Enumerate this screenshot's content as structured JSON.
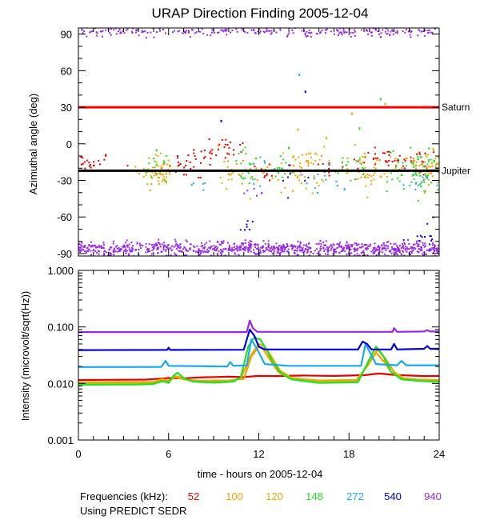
{
  "colors": {
    "f52": "#e00000",
    "f100": "#ff9a00",
    "f120": "#d8b000",
    "f148": "#22e022",
    "f272": "#18a8f0",
    "f540": "#0000e0",
    "f940": "#9a28e8",
    "saturn": "#ff0000",
    "jupiter": "#000000"
  },
  "chart_data": [
    {
      "type": "scatter",
      "title": "URAP Direction Finding  2005-12-04",
      "xlabel": "",
      "ylabel": "Azimuthal angle (deg)",
      "xlim": [
        0,
        24
      ],
      "ylim": [
        -92,
        95
      ],
      "yticks": [
        90,
        60,
        30,
        0,
        -30,
        -60,
        -90
      ],
      "ytick_labels": [
        "90",
        "60",
        "30",
        "0",
        "-30",
        "-60",
        "-90"
      ],
      "reference_lines": [
        {
          "name": "Saturn",
          "label": "Saturn",
          "y": 30,
          "color_key": "saturn"
        },
        {
          "name": "Jupiter",
          "label": "Jupiter",
          "y": -22,
          "color_key": "jupiter"
        }
      ],
      "series": [
        {
          "name": "52 kHz",
          "clusters": [
            [
              0.5,
              -15,
              4,
              1.0,
              25
            ],
            [
              7.8,
              -18,
              6,
              0.9,
              30
            ],
            [
              9.5,
              -3,
              5,
              1.0,
              25
            ],
            [
              12.5,
              -23,
              4,
              0.3,
              10
            ],
            [
              16.5,
              -20,
              5,
              0.6,
              12
            ],
            [
              19.8,
              -12,
              6,
              1.0,
              25
            ],
            [
              22.2,
              -15,
              6,
              1.0,
              30
            ]
          ]
        },
        {
          "name": "100 kHz",
          "clusters": [
            [
              5.5,
              -24,
              5,
              0.4,
              20
            ],
            [
              12.2,
              -20,
              6,
              0.5,
              15
            ],
            [
              15.2,
              -20,
              8,
              0.6,
              25
            ],
            [
              19.5,
              -25,
              5,
              0.6,
              20
            ],
            [
              22.5,
              -18,
              6,
              0.8,
              40
            ]
          ]
        },
        {
          "name": "120 kHz",
          "clusters": [
            [
              5.3,
              -22,
              7,
              0.7,
              45
            ],
            [
              10.3,
              -25,
              6,
              0.4,
              20
            ],
            [
              14.8,
              -22,
              10,
              0.8,
              35
            ],
            [
              18.5,
              -21,
              8,
              0.8,
              25
            ],
            [
              23.5,
              -20,
              8,
              0.5,
              40
            ]
          ]
        },
        {
          "name": "148 kHz",
          "clusters": [
            [
              5.2,
              -20,
              5,
              0.3,
              12
            ],
            [
              11.3,
              -20,
              8,
              0.5,
              20
            ],
            [
              13.5,
              -22,
              6,
              0.4,
              15
            ],
            [
              18.3,
              -20,
              6,
              0.7,
              15
            ],
            [
              22.6,
              -22,
              9,
              1.0,
              70
            ]
          ]
        },
        {
          "name": "272 kHz",
          "clusters": [
            [
              8.0,
              -33,
              4,
              0.3,
              5
            ],
            [
              12.0,
              -23,
              6,
              0.5,
              10
            ],
            [
              16.0,
              -28,
              8,
              0.8,
              12
            ],
            [
              23.0,
              -28,
              6,
              0.6,
              15
            ]
          ]
        },
        {
          "name": "540 kHz",
          "clusters": [
            [
              11.4,
              -70,
              6,
              0.3,
              8
            ],
            [
              14.2,
              -25,
              5,
              0.5,
              8
            ],
            [
              22.9,
              -72,
              8,
              0.5,
              8
            ],
            [
              23.4,
              -82,
              4,
              0.3,
              10
            ]
          ]
        },
        {
          "name": "940 kHz",
          "clusters": [
            [
              12,
              -86,
              3,
              12,
              900
            ],
            [
              12,
              92,
              2,
              12,
              250
            ],
            [
              11.5,
              -39,
              4,
              0.3,
              4
            ]
          ]
        }
      ],
      "isolated_points": [
        {
          "series": "272 kHz",
          "x": 14.7,
          "y": 57
        },
        {
          "series": "540 kHz",
          "x": 15.1,
          "y": 43
        },
        {
          "series": "148 kHz",
          "x": 20.1,
          "y": 37
        },
        {
          "series": "120 kHz",
          "x": 20.4,
          "y": 33
        },
        {
          "series": "100 kHz",
          "x": 18.2,
          "y": 25
        },
        {
          "series": "148 kHz",
          "x": 18.7,
          "y": 13
        },
        {
          "series": "540 kHz",
          "x": 9.5,
          "y": 19
        },
        {
          "series": "120 kHz",
          "x": 14.6,
          "y": 12
        },
        {
          "series": "120 kHz",
          "x": 16.5,
          "y": 5
        },
        {
          "series": "148 kHz",
          "x": 5.2,
          "y": -5
        },
        {
          "series": "100 kHz",
          "x": 9.3,
          "y": -1
        },
        {
          "series": "148 kHz",
          "x": 14.0,
          "y": -3
        },
        {
          "series": "272 kHz",
          "x": 17.7,
          "y": -37
        },
        {
          "series": "940 kHz",
          "x": 12.2,
          "y": -40
        }
      ]
    },
    {
      "type": "line",
      "title": "",
      "xlabel": "time - hours on 2005-12-04",
      "ylabel": "Intensity (microvolt/sqrt(Hz))",
      "xlim": [
        0,
        24
      ],
      "yscale": "log",
      "ylim": [
        0.001,
        1.0
      ],
      "yticks": [
        1.0,
        0.1,
        0.01,
        0.001
      ],
      "ytick_labels": [
        "1.000",
        "0.100",
        "0.010",
        "0.001"
      ],
      "xticks": [
        0,
        6,
        12,
        18,
        24
      ],
      "xtick_labels": [
        "0",
        "6",
        "12",
        "18",
        "24"
      ],
      "series": [
        {
          "name": "52",
          "points": [
            [
              0,
              0.0115
            ],
            [
              4.5,
              0.0117
            ],
            [
              5.5,
              0.0122
            ],
            [
              6.0,
              0.0125
            ],
            [
              7.0,
              0.0123
            ],
            [
              8.0,
              0.0128
            ],
            [
              9.0,
              0.013
            ],
            [
              10.0,
              0.0132
            ],
            [
              11.0,
              0.013
            ],
            [
              12.0,
              0.0136
            ],
            [
              13.0,
              0.0135
            ],
            [
              15.0,
              0.0138
            ],
            [
              17.0,
              0.0136
            ],
            [
              19.0,
              0.014
            ],
            [
              20.0,
              0.015
            ],
            [
              21.0,
              0.0142
            ],
            [
              22.0,
              0.0138
            ],
            [
              23.0,
              0.0135
            ],
            [
              24.0,
              0.0136
            ]
          ]
        },
        {
          "name": "100",
          "points": [
            [
              0,
              0.0105
            ],
            [
              4.0,
              0.0106
            ],
            [
              5.0,
              0.0107
            ],
            [
              5.6,
              0.012
            ],
            [
              5.9,
              0.0112
            ],
            [
              6.2,
              0.0118
            ],
            [
              6.4,
              0.0135
            ],
            [
              6.8,
              0.0128
            ],
            [
              7.3,
              0.0116
            ],
            [
              8.0,
              0.0112
            ],
            [
              10.0,
              0.0113
            ],
            [
              10.5,
              0.0118
            ],
            [
              11.0,
              0.012
            ],
            [
              11.5,
              0.03
            ],
            [
              12.0,
              0.045
            ],
            [
              12.3,
              0.04
            ],
            [
              12.8,
              0.025
            ],
            [
              13.3,
              0.016
            ],
            [
              14.0,
              0.0125
            ],
            [
              16.0,
              0.0113
            ],
            [
              18.5,
              0.0115
            ],
            [
              19.2,
              0.02
            ],
            [
              19.8,
              0.035
            ],
            [
              20.3,
              0.025
            ],
            [
              20.8,
              0.016
            ],
            [
              21.5,
              0.0125
            ],
            [
              22.5,
              0.0118
            ],
            [
              23.5,
              0.0116
            ],
            [
              24.0,
              0.0116
            ]
          ]
        },
        {
          "name": "120",
          "points": [
            [
              0,
              0.0102
            ],
            [
              4.0,
              0.0103
            ],
            [
              5.0,
              0.0104
            ],
            [
              5.6,
              0.0115
            ],
            [
              6.0,
              0.0108
            ],
            [
              6.4,
              0.013
            ],
            [
              6.8,
              0.0122
            ],
            [
              7.5,
              0.0112
            ],
            [
              9.0,
              0.0108
            ],
            [
              10.2,
              0.0112
            ],
            [
              10.8,
              0.0125
            ],
            [
              11.5,
              0.032
            ],
            [
              12.0,
              0.05
            ],
            [
              12.4,
              0.045
            ],
            [
              12.9,
              0.028
            ],
            [
              13.4,
              0.017
            ],
            [
              14.2,
              0.0125
            ],
            [
              16.0,
              0.011
            ],
            [
              18.5,
              0.0112
            ],
            [
              19.3,
              0.022
            ],
            [
              19.9,
              0.04
            ],
            [
              20.4,
              0.028
            ],
            [
              21.0,
              0.016
            ],
            [
              21.7,
              0.012
            ],
            [
              22.5,
              0.0115
            ],
            [
              23.5,
              0.0112
            ],
            [
              24.0,
              0.0112
            ]
          ]
        },
        {
          "name": "148",
          "points": [
            [
              0,
              0.0095
            ],
            [
              4.0,
              0.0096
            ],
            [
              5.0,
              0.0098
            ],
            [
              5.6,
              0.011
            ],
            [
              6.0,
              0.0102
            ],
            [
              6.3,
              0.0135
            ],
            [
              6.6,
              0.0155
            ],
            [
              7.0,
              0.0125
            ],
            [
              7.6,
              0.0108
            ],
            [
              9.0,
              0.0103
            ],
            [
              10.3,
              0.0108
            ],
            [
              10.8,
              0.0128
            ],
            [
              11.3,
              0.045
            ],
            [
              11.7,
              0.065
            ],
            [
              12.1,
              0.06
            ],
            [
              12.5,
              0.04
            ],
            [
              13.0,
              0.022
            ],
            [
              13.5,
              0.015
            ],
            [
              14.2,
              0.0118
            ],
            [
              16.0,
              0.0102
            ],
            [
              18.6,
              0.0105
            ],
            [
              19.3,
              0.025
            ],
            [
              19.8,
              0.045
            ],
            [
              20.3,
              0.03
            ],
            [
              20.8,
              0.016
            ],
            [
              21.5,
              0.0118
            ],
            [
              22.5,
              0.0112
            ],
            [
              23.5,
              0.0108
            ],
            [
              24.0,
              0.0108
            ]
          ]
        },
        {
          "name": "272",
          "points": [
            [
              0,
              0.0195
            ],
            [
              5.5,
              0.0196
            ],
            [
              5.8,
              0.025
            ],
            [
              6.0,
              0.0205
            ],
            [
              9.9,
              0.02
            ],
            [
              10.1,
              0.024
            ],
            [
              10.3,
              0.0205
            ],
            [
              11.2,
              0.021
            ],
            [
              11.5,
              0.06
            ],
            [
              11.9,
              0.04
            ],
            [
              12.4,
              0.022
            ],
            [
              14.0,
              0.0205
            ],
            [
              18.8,
              0.0205
            ],
            [
              19.1,
              0.05
            ],
            [
              19.4,
              0.035
            ],
            [
              19.8,
              0.022
            ],
            [
              21.2,
              0.021
            ],
            [
              21.5,
              0.025
            ],
            [
              21.8,
              0.021
            ],
            [
              24.0,
              0.021
            ]
          ]
        },
        {
          "name": "540",
          "points": [
            [
              0,
              0.039
            ],
            [
              5.9,
              0.0392
            ],
            [
              6.0,
              0.043
            ],
            [
              6.1,
              0.0392
            ],
            [
              11.0,
              0.0395
            ],
            [
              11.4,
              0.09
            ],
            [
              11.7,
              0.07
            ],
            [
              12.0,
              0.045
            ],
            [
              12.4,
              0.04
            ],
            [
              18.6,
              0.04
            ],
            [
              18.9,
              0.055
            ],
            [
              19.2,
              0.05
            ],
            [
              19.5,
              0.04
            ],
            [
              20.8,
              0.04
            ],
            [
              21.0,
              0.05
            ],
            [
              21.2,
              0.04
            ],
            [
              23.0,
              0.041
            ],
            [
              23.2,
              0.046
            ],
            [
              23.4,
              0.041
            ],
            [
              24.0,
              0.041
            ]
          ]
        },
        {
          "name": "940",
          "points": [
            [
              0,
              0.081
            ],
            [
              11.2,
              0.081
            ],
            [
              11.4,
              0.13
            ],
            [
              11.6,
              0.095
            ],
            [
              11.9,
              0.082
            ],
            [
              20.9,
              0.082
            ],
            [
              21.0,
              0.095
            ],
            [
              21.2,
              0.082
            ],
            [
              23.0,
              0.083
            ],
            [
              23.2,
              0.088
            ],
            [
              23.4,
              0.083
            ],
            [
              24.0,
              0.083
            ]
          ]
        }
      ]
    }
  ],
  "legend": {
    "title": "Frequencies (kHz):",
    "items": [
      {
        "label": "52",
        "color_key": "f52"
      },
      {
        "label": "100",
        "color_key": "f100"
      },
      {
        "label": "120",
        "color_key": "f120"
      },
      {
        "label": "148",
        "color_key": "f148"
      },
      {
        "label": "272",
        "color_key": "f272"
      },
      {
        "label": "540",
        "color_key": "f540"
      },
      {
        "label": "940",
        "color_key": "f940"
      }
    ]
  },
  "note": "Using PREDICT SEDR"
}
